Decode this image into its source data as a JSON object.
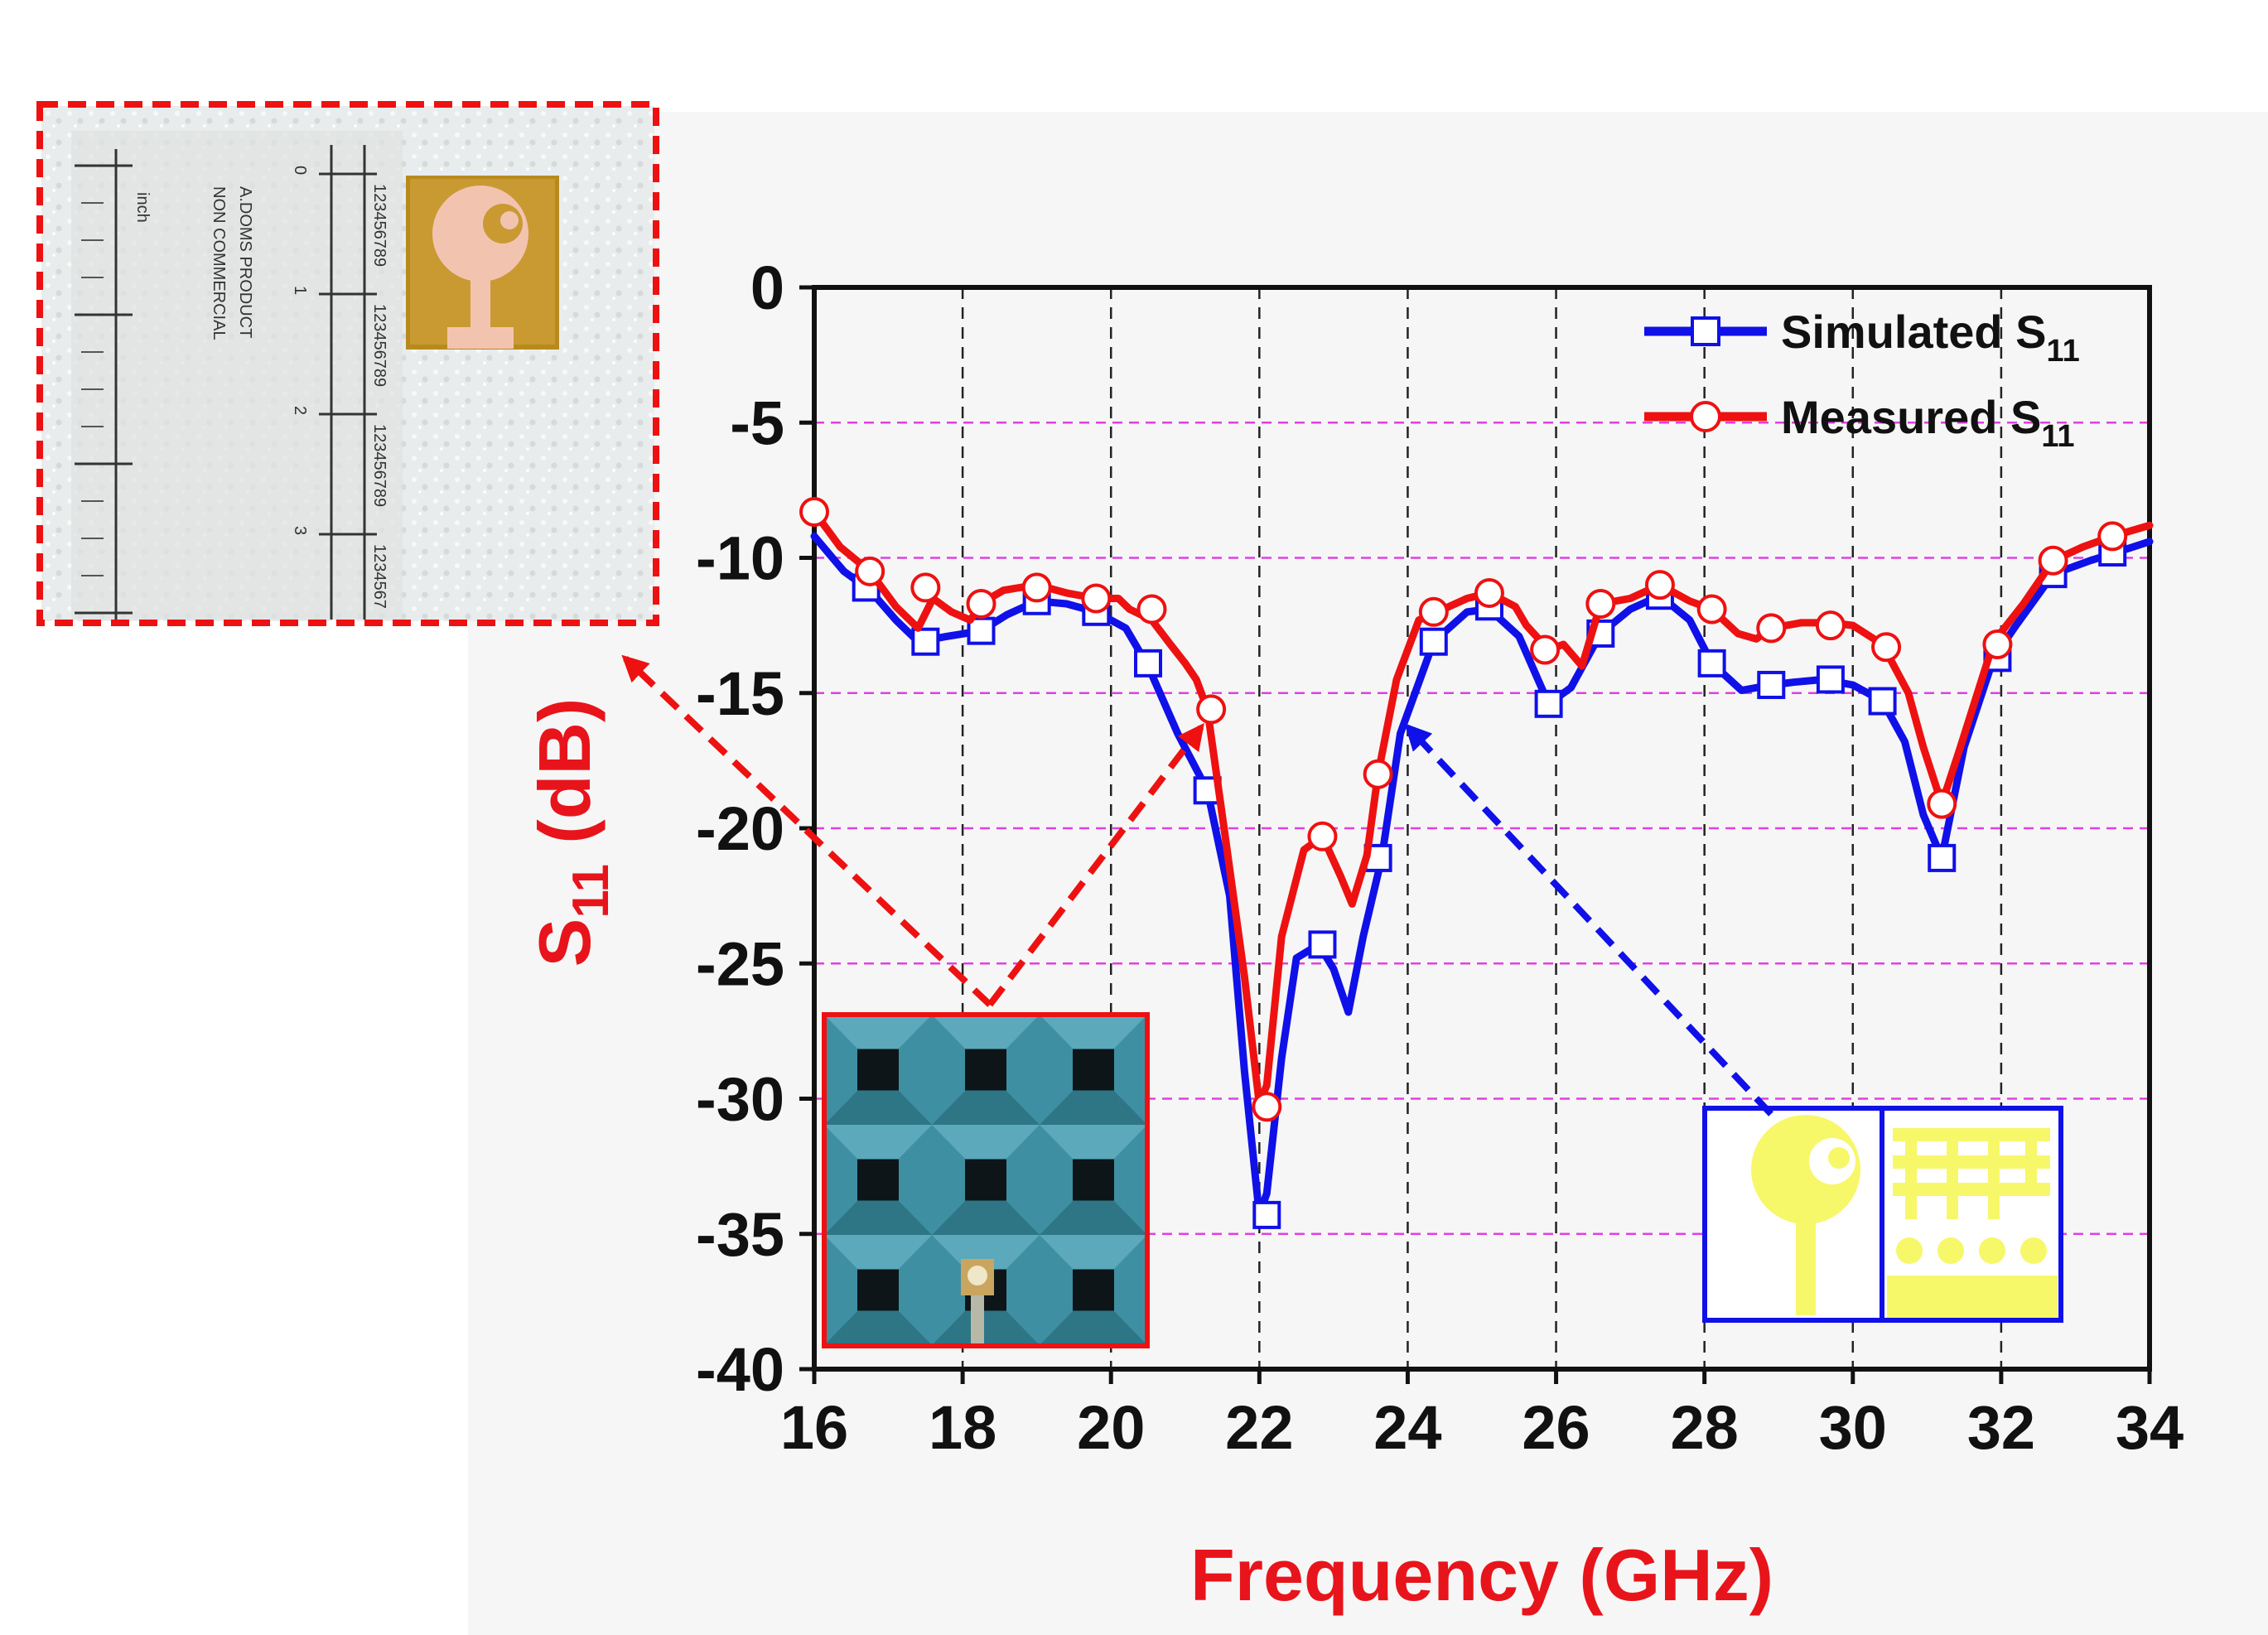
{
  "chart_data": {
    "type": "line",
    "xlabel": "Frequency (GHz)",
    "ylabel_main": "S",
    "ylabel_sub": "11",
    "ylabel_unit": " (dB)",
    "xlim": [
      16,
      34
    ],
    "ylim": [
      -40,
      0
    ],
    "xticks": [
      "16",
      "18",
      "20",
      "22",
      "24",
      "26",
      "28",
      "30",
      "32",
      "34"
    ],
    "yticks": [
      "0",
      "-5",
      "-10",
      "-15",
      "-20",
      "-25",
      "-30",
      "-35",
      "-40"
    ],
    "grid": {
      "vertical": "dashed-black",
      "horizontal": "dashed-magenta"
    },
    "legend_position": "top-right",
    "series": [
      {
        "name_main": "Simulated S",
        "name_sub": "11",
        "color": "#1010e8",
        "marker": "square",
        "x": [
          16.0,
          16.4,
          16.75,
          17.1,
          17.4,
          17.8,
          18.25,
          18.6,
          19.0,
          19.4,
          19.8,
          20.2,
          20.5,
          20.9,
          21.3,
          21.6,
          21.8,
          22.0,
          22.1,
          22.3,
          22.5,
          22.8,
          23.0,
          23.2,
          23.4,
          23.65,
          23.9,
          24.35,
          24.8,
          25.1,
          25.5,
          25.9,
          26.2,
          26.6,
          27.0,
          27.4,
          27.8,
          28.1,
          28.5,
          28.9,
          29.2,
          29.6,
          30.0,
          30.4,
          30.7,
          30.95,
          31.2,
          31.5,
          31.9,
          32.2,
          32.7,
          33.2,
          33.55,
          34.0
        ],
        "values": [
          -9.2,
          -10.5,
          -11.2,
          -12.3,
          -13.1,
          -12.9,
          -12.7,
          -12.1,
          -11.6,
          -11.7,
          -12.0,
          -12.6,
          -14.0,
          -16.5,
          -18.6,
          -22.5,
          -29.0,
          -34.3,
          -33.5,
          -28.5,
          -24.8,
          -24.3,
          -25.2,
          -26.8,
          -24.0,
          -21.1,
          -16.5,
          -13.1,
          -12.0,
          -11.9,
          -12.9,
          -15.4,
          -14.8,
          -12.8,
          -11.9,
          -11.4,
          -12.3,
          -13.9,
          -14.9,
          -14.7,
          -14.6,
          -14.5,
          -14.7,
          -15.3,
          -16.8,
          -19.5,
          -21.1,
          -17.0,
          -13.7,
          -12.5,
          -10.6,
          -10.1,
          -9.8,
          -9.4
        ],
        "marker_x": [
          16.7,
          17.5,
          18.25,
          19.0,
          19.8,
          20.5,
          21.3,
          22.1,
          22.85,
          23.6,
          24.35,
          25.1,
          25.9,
          26.6,
          27.4,
          28.1,
          28.9,
          29.7,
          30.4,
          31.2,
          31.95,
          32.7,
          33.5
        ],
        "marker_values": [
          -11.1,
          -13.1,
          -12.7,
          -11.6,
          -12.0,
          -13.9,
          -18.6,
          -34.3,
          -24.3,
          -21.1,
          -13.1,
          -11.8,
          -15.4,
          -12.8,
          -11.4,
          -13.9,
          -14.7,
          -14.5,
          -15.3,
          -21.1,
          -13.7,
          -10.6,
          -9.8
        ]
      },
      {
        "name_main": "Measured S",
        "name_sub": "11",
        "color": "#ee1111",
        "marker": "circle",
        "x": [
          16.0,
          16.35,
          16.75,
          17.1,
          17.4,
          17.6,
          17.85,
          18.1,
          18.3,
          18.55,
          19.0,
          19.4,
          19.8,
          20.1,
          20.25,
          20.55,
          20.8,
          21.0,
          21.15,
          21.3,
          21.55,
          21.8,
          22.0,
          22.1,
          22.3,
          22.6,
          22.85,
          23.1,
          23.25,
          23.45,
          23.6,
          23.85,
          24.15,
          24.4,
          24.8,
          25.1,
          25.45,
          25.6,
          25.9,
          26.1,
          26.35,
          26.6,
          27.0,
          27.4,
          27.8,
          28.1,
          28.45,
          28.7,
          28.9,
          29.3,
          29.7,
          30.0,
          30.4,
          30.75,
          30.95,
          31.2,
          31.45,
          31.9,
          32.3,
          32.7,
          33.1,
          33.5,
          34.0
        ],
        "values": [
          -8.3,
          -9.6,
          -10.5,
          -11.8,
          -12.6,
          -11.5,
          -12.0,
          -12.3,
          -11.6,
          -11.2,
          -11.0,
          -11.3,
          -11.5,
          -11.5,
          -11.9,
          -12.3,
          -13.2,
          -13.9,
          -14.5,
          -15.6,
          -20.5,
          -25.5,
          -30.2,
          -29.5,
          -24.0,
          -20.8,
          -20.3,
          -21.8,
          -22.8,
          -21.0,
          -18.0,
          -14.5,
          -12.3,
          -12.0,
          -11.5,
          -11.3,
          -11.8,
          -12.5,
          -13.4,
          -13.2,
          -14.0,
          -11.7,
          -11.5,
          -11.0,
          -11.6,
          -11.9,
          -12.8,
          -13.0,
          -12.6,
          -12.4,
          -12.4,
          -12.5,
          -13.2,
          -15.0,
          -17.0,
          -19.1,
          -17.0,
          -13.1,
          -11.7,
          -10.1,
          -9.6,
          -9.2,
          -8.8
        ],
        "marker_x": [
          16.0,
          16.75,
          17.5,
          18.25,
          19.0,
          19.8,
          20.55,
          21.35,
          22.1,
          22.85,
          23.6,
          24.35,
          25.1,
          25.85,
          26.6,
          27.4,
          28.1,
          28.9,
          29.7,
          30.45,
          31.2,
          31.95,
          32.7,
          33.5
        ],
        "marker_values": [
          -8.3,
          -10.5,
          -11.1,
          -11.7,
          -11.1,
          -11.5,
          -11.9,
          -15.6,
          -30.3,
          -20.3,
          -18.0,
          -12.0,
          -11.3,
          -13.4,
          -11.7,
          -11.0,
          -11.9,
          -12.6,
          -12.5,
          -13.3,
          -19.1,
          -13.2,
          -10.1,
          -9.2
        ]
      }
    ],
    "insets": [
      {
        "kind": "photo-ruler",
        "border": "#ee1111",
        "ruler_labels": [
          "inch",
          "0",
          "1",
          "2",
          "3"
        ],
        "ruler_text_lines": [
          "A.DOMS PRODUCT",
          "NON COMMERCIAL"
        ],
        "ruler_digit_rows": [
          "123456789",
          "123456789",
          "123456789",
          "1234567"
        ]
      },
      {
        "kind": "photo-chamber",
        "border": "#ee1111"
      },
      {
        "kind": "antenna-layout",
        "border": "#1010e8"
      }
    ]
  }
}
